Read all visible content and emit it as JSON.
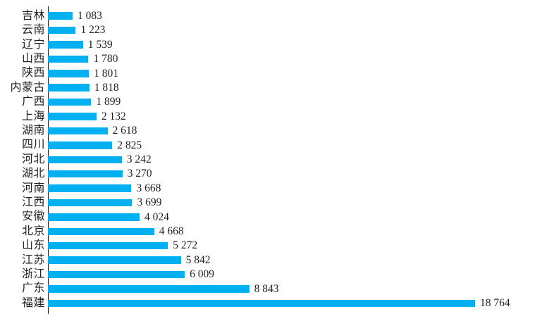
{
  "chart_data": {
    "type": "bar",
    "orientation": "horizontal",
    "title": "",
    "xlabel": "",
    "ylabel": "",
    "grid": false,
    "legend": null,
    "bar_color": "#00b0f0",
    "axis_color": "#231f20",
    "xlim": [
      0,
      18764
    ],
    "categories": [
      "吉林",
      "云南",
      "辽宁",
      "山西",
      "陕西",
      "内蒙古",
      "广西",
      "上海",
      "湖南",
      "四川",
      "河北",
      "湖北",
      "河南",
      "江西",
      "安徽",
      "北京",
      "山东",
      "江苏",
      "浙江",
      "广东",
      "福建"
    ],
    "values": [
      1083,
      1223,
      1539,
      1780,
      1801,
      1818,
      1899,
      2132,
      2618,
      2825,
      3242,
      3270,
      3668,
      3699,
      4024,
      4668,
      5272,
      5842,
      6009,
      8843,
      18764
    ],
    "value_labels": [
      "1 083",
      "1 223",
      "1 539",
      "1 780",
      "1 801",
      "1 818",
      "1 899",
      "2 132",
      "2 618",
      "2 825",
      "3 242",
      "3 270",
      "3 668",
      "3 699",
      "4 024",
      "4 668",
      "5 272",
      "5 842",
      "6 009",
      "8 843",
      "18 764"
    ]
  }
}
